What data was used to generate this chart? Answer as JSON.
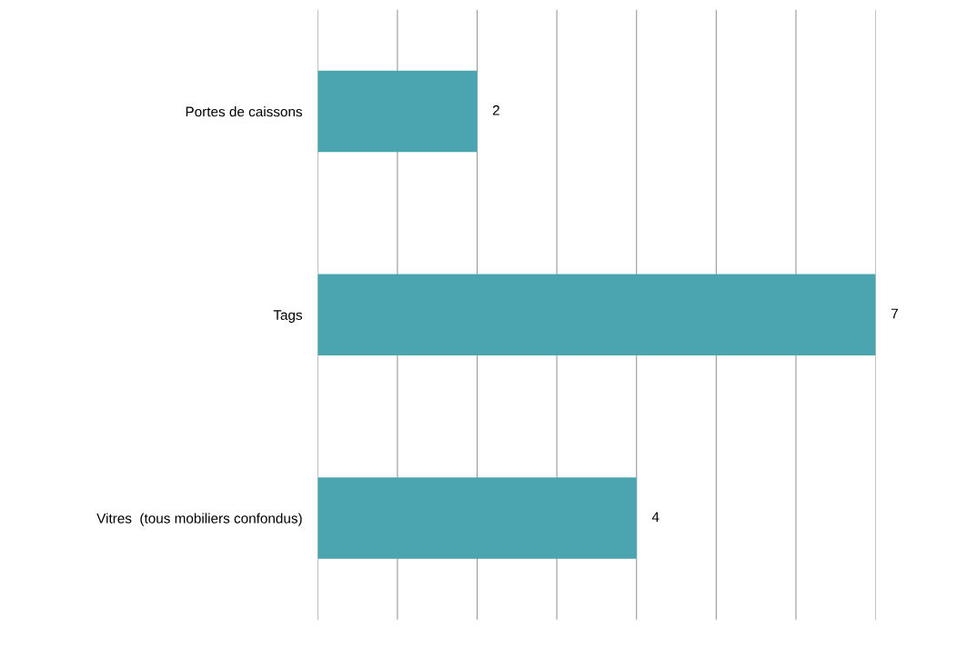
{
  "chart_data": {
    "type": "bar",
    "orientation": "horizontal",
    "categories": [
      "Portes de caissons",
      "Tags",
      "Vitres  (tous mobiliers confondus)"
    ],
    "values": [
      2,
      7,
      4
    ],
    "color": "#4aa5b0",
    "xlim": [
      0,
      7
    ],
    "xticks": [
      {
        "value": 0,
        "label": null
      },
      {
        "value": 1,
        "label": null
      },
      {
        "value": 2,
        "label": null
      },
      {
        "value": 3,
        "label": null
      },
      {
        "value": 4,
        "label": null
      },
      {
        "value": 5,
        "label": null
      },
      {
        "value": 6,
        "label": null
      },
      {
        "value": 7,
        "label": null
      }
    ],
    "grid": "x",
    "data_labels": true,
    "tick_labels": "y",
    "legend": false
  }
}
